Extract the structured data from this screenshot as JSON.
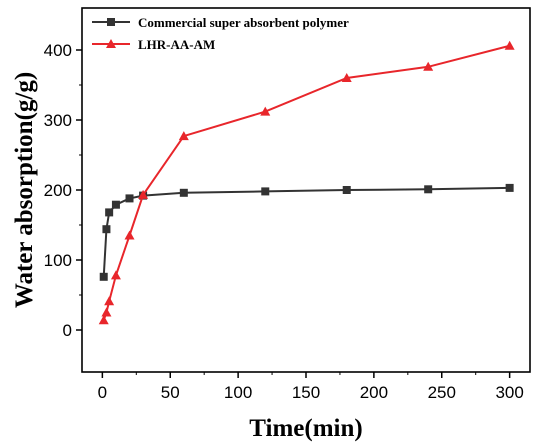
{
  "chart_data": {
    "type": "line",
    "title": "",
    "xlabel": "Time(min)",
    "ylabel": "Water absorption(g/g)",
    "xlim": [
      -15,
      315
    ],
    "ylim": [
      -60,
      460
    ],
    "x_ticks": [
      0,
      50,
      100,
      150,
      200,
      250,
      300
    ],
    "y_ticks": [
      0,
      100,
      200,
      300,
      400
    ],
    "grid": false,
    "legend_position": "top-left",
    "series": [
      {
        "name": "Commercial  super absorbent polymer",
        "color": "#333333",
        "marker": "square",
        "x": [
          1,
          3,
          5,
          10,
          20,
          30,
          60,
          120,
          180,
          240,
          300
        ],
        "y": [
          76,
          144,
          168,
          179,
          188,
          192,
          196,
          198,
          200,
          201,
          203
        ]
      },
      {
        "name": "LHR-AA-AM",
        "color": "#e8262b",
        "marker": "triangle",
        "x": [
          1,
          3,
          5,
          10,
          20,
          30,
          60,
          120,
          180,
          240,
          300
        ],
        "y": [
          14,
          25,
          41,
          78,
          135,
          193,
          277,
          312,
          360,
          376,
          406
        ]
      }
    ]
  }
}
